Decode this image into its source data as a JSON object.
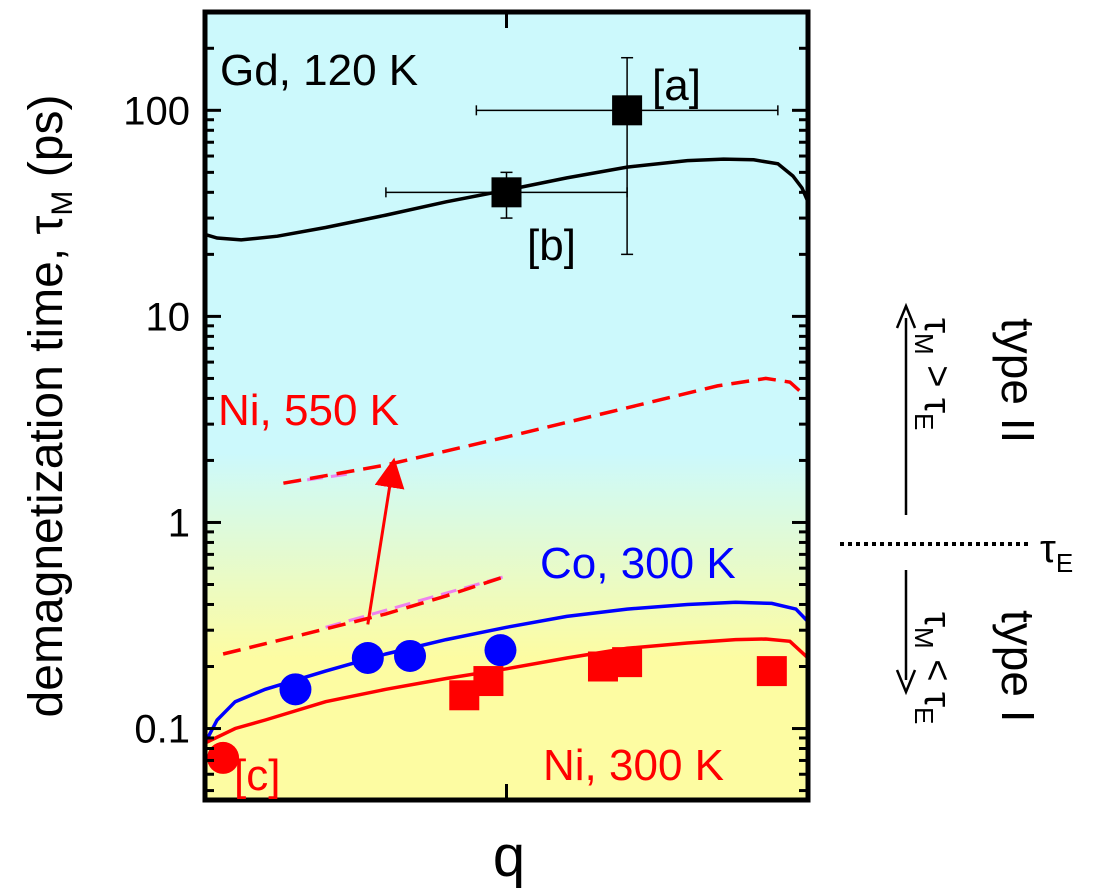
{
  "chart_data": {
    "type": "scatter",
    "title": "",
    "xlabel": "q",
    "ylabel": "demagnetization time, τ",
    "ylabel_sub": "M",
    "ylabel_unit": " (ps)",
    "yscale": "log",
    "xlim": [
      0,
      1
    ],
    "ylim": [
      0.045,
      300
    ],
    "yticks": [
      {
        "value": 0.1,
        "label": "0.1"
      },
      {
        "value": 1,
        "label": "1"
      },
      {
        "value": 10,
        "label": "10"
      },
      {
        "value": 100,
        "label": "100"
      }
    ],
    "grid": false,
    "background": {
      "top_color": "#ccf9fc",
      "bottom_color": "#fdfca2"
    },
    "series": [
      {
        "name": "Gd, 120 K",
        "color": "#000000",
        "marker": "square",
        "curve": [
          [
            0.0,
            25
          ],
          [
            0.02,
            24
          ],
          [
            0.06,
            23.5
          ],
          [
            0.12,
            24.5
          ],
          [
            0.2,
            27
          ],
          [
            0.3,
            31
          ],
          [
            0.4,
            36
          ],
          [
            0.5,
            41
          ],
          [
            0.6,
            47
          ],
          [
            0.7,
            53
          ],
          [
            0.8,
            57
          ],
          [
            0.86,
            58
          ],
          [
            0.91,
            57.5
          ],
          [
            0.95,
            55
          ],
          [
            0.975,
            48
          ],
          [
            0.99,
            42
          ],
          [
            1.0,
            36
          ]
        ],
        "points": [
          {
            "x": 0.7,
            "y": 100,
            "xerr": [
              0.25,
              0.25
            ],
            "yerr_lo": 20,
            "yerr_hi": 180,
            "label": "[a]"
          },
          {
            "x": 0.5,
            "y": 40,
            "xerr": [
              0.2,
              0.2
            ],
            "yerr_lo": 30,
            "yerr_hi": 50,
            "label": "[b]"
          }
        ]
      },
      {
        "name": "Ni, 550 K",
        "color": "#ff0000",
        "style": "dashed",
        "curve": [
          [
            0.13,
            1.55
          ],
          [
            0.3,
            1.9
          ],
          [
            0.5,
            2.6
          ],
          [
            0.7,
            3.6
          ],
          [
            0.85,
            4.6
          ],
          [
            0.93,
            5.0
          ],
          [
            0.97,
            4.8
          ],
          [
            1.0,
            4.0
          ]
        ]
      },
      {
        "name": "Ni, 550 K (low)",
        "color": "#ff0000",
        "style": "dashed",
        "curve": [
          [
            0.03,
            0.23
          ],
          [
            0.15,
            0.28
          ],
          [
            0.3,
            0.36
          ],
          [
            0.4,
            0.44
          ],
          [
            0.5,
            0.55
          ]
        ]
      },
      {
        "name": "Co, 300 K",
        "color": "#0000ff",
        "marker": "circle",
        "curve": [
          [
            0.0,
            0.085
          ],
          [
            0.02,
            0.11
          ],
          [
            0.05,
            0.135
          ],
          [
            0.1,
            0.155
          ],
          [
            0.2,
            0.19
          ],
          [
            0.3,
            0.23
          ],
          [
            0.4,
            0.27
          ],
          [
            0.5,
            0.31
          ],
          [
            0.6,
            0.35
          ],
          [
            0.7,
            0.38
          ],
          [
            0.8,
            0.4
          ],
          [
            0.88,
            0.41
          ],
          [
            0.94,
            0.405
          ],
          [
            0.98,
            0.38
          ],
          [
            1.0,
            0.33
          ]
        ],
        "points": [
          {
            "x": 0.15,
            "y": 0.155
          },
          {
            "x": 0.27,
            "y": 0.22
          },
          {
            "x": 0.34,
            "y": 0.225
          },
          {
            "x": 0.49,
            "y": 0.24
          }
        ]
      },
      {
        "name": "Ni, 300 K",
        "color": "#ff0000",
        "marker": "square",
        "curve": [
          [
            0.0,
            0.085
          ],
          [
            0.05,
            0.1
          ],
          [
            0.1,
            0.11
          ],
          [
            0.2,
            0.135
          ],
          [
            0.3,
            0.155
          ],
          [
            0.4,
            0.175
          ],
          [
            0.5,
            0.195
          ],
          [
            0.6,
            0.22
          ],
          [
            0.7,
            0.245
          ],
          [
            0.8,
            0.26
          ],
          [
            0.88,
            0.27
          ],
          [
            0.93,
            0.272
          ],
          [
            0.97,
            0.265
          ],
          [
            1.0,
            0.22
          ]
        ],
        "points": [
          {
            "x": 0.43,
            "y": 0.145
          },
          {
            "x": 0.47,
            "y": 0.17
          },
          {
            "x": 0.66,
            "y": 0.2
          },
          {
            "x": 0.7,
            "y": 0.21
          },
          {
            "x": 0.94,
            "y": 0.19
          }
        ]
      },
      {
        "name": "[c]",
        "color": "#ff0000",
        "marker": "circle",
        "points": [
          {
            "x": 0.03,
            "y": 0.072
          }
        ]
      }
    ],
    "magenta_guides": [
      {
        "color": "#ee82ee",
        "curve": [
          [
            0.13,
            1.55
          ],
          [
            0.24,
            1.72
          ]
        ]
      },
      {
        "color": "#ee82ee",
        "curve": [
          [
            0.2,
            0.31
          ],
          [
            0.5,
            0.55
          ]
        ]
      }
    ],
    "arrow": {
      "color": "#ff0000",
      "from": [
        0.27,
        0.32
      ],
      "to": [
        0.31,
        1.75
      ]
    },
    "annotations": [
      {
        "text": "Gd, 120 K",
        "color": "#000000"
      },
      {
        "text": "[a]",
        "color": "#000000"
      },
      {
        "text": "[b]",
        "color": "#000000"
      },
      {
        "text": "Ni, 550 K",
        "color": "#ff0000"
      },
      {
        "text": "Co, 300 K",
        "color": "#0000ff"
      },
      {
        "text": "Ni, 300 K",
        "color": "#ff0000"
      },
      {
        "text": "[c]",
        "color": "#ff0000"
      }
    ],
    "side_panel": {
      "tau_E_level": 0.75,
      "tau_E_symbol": "τ",
      "tau_E_sub": "E",
      "type2_label": "type II",
      "type1_label": "type I",
      "cond_tau": "τ",
      "cond_sub_M": "M",
      "cond_sub_E": "E",
      "cond_gt": " > ",
      "cond_lt": " < "
    }
  }
}
